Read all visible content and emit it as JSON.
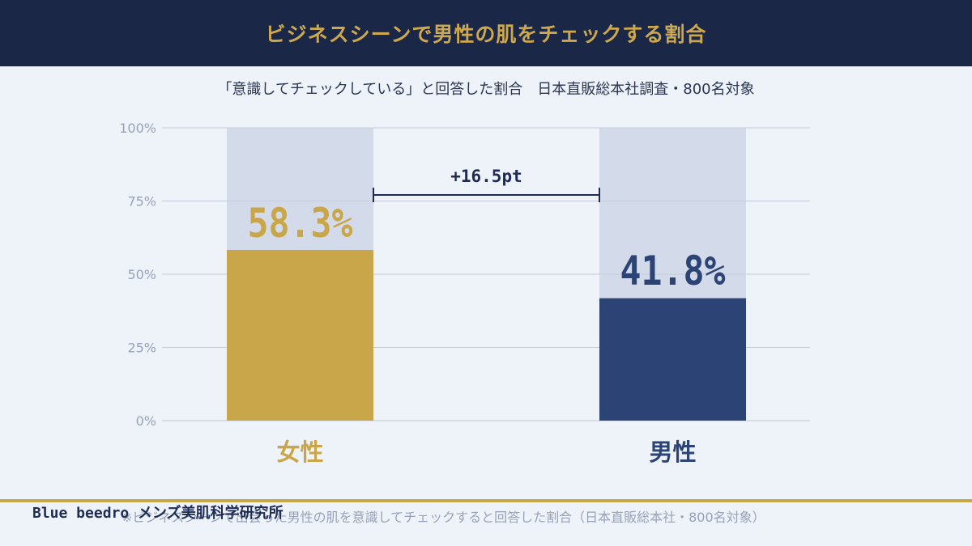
{
  "header": {
    "title": "ビジネスシーンで男性の肌をチェックする割合"
  },
  "subtitle": "「意識してチェックしている」と回答した割合　日本直販総本社調査・800名対象",
  "chart_data": {
    "type": "bar",
    "categories": [
      "女性",
      "男性"
    ],
    "values": [
      58.3,
      41.8
    ],
    "value_labels": [
      "58.3%",
      "41.8%"
    ],
    "ylim": [
      0,
      100
    ],
    "yticks": [
      0,
      25,
      50,
      75,
      100
    ],
    "ytick_labels": [
      "0%",
      "25%",
      "50%",
      "75%",
      "100%"
    ],
    "grid": true,
    "difference_label": "+16.5pt",
    "colors": {
      "female": "#c9a64a",
      "male": "#2b4375",
      "track": "#d3dbea",
      "grid": "#c3c9d6",
      "tick": "#98a2b8",
      "bracket": "#1e2c55"
    }
  },
  "footer": {
    "brand": "Blue beedro メンズ美肌科学研究所",
    "note": "※ビジネスシーンで出会った男性の肌を意識してチェックすると回答した割合（日本直販総本社・800名対象）"
  }
}
